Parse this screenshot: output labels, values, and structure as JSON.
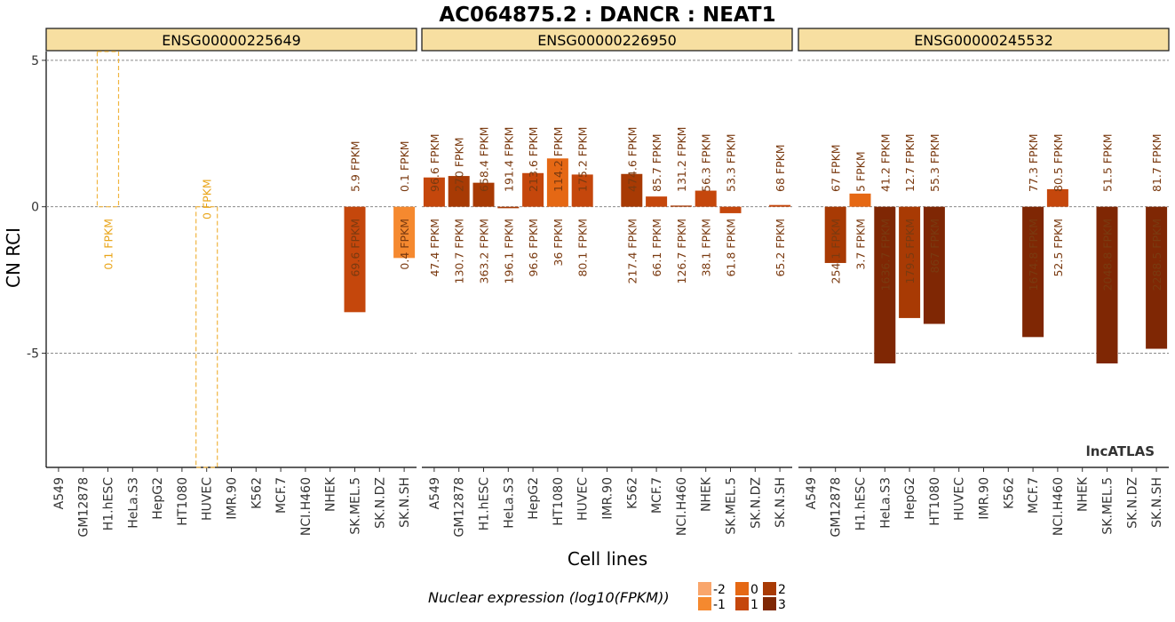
{
  "chart_data": {
    "type": "bar",
    "title": "AC064875.2 : DANCR : NEAT1",
    "xlabel": "Cell lines",
    "ylabel": "CN RCI",
    "ylim": [
      -8.9,
      5.3
    ],
    "yticks": [
      5,
      0,
      -5
    ],
    "grid": "horizontal dashed at ticks",
    "watermark": "lncATLAS",
    "categories": [
      "A549",
      "GM12878",
      "H1.hESC",
      "HeLa.S3",
      "HepG2",
      "HT1080",
      "HUVEC",
      "IMR.90",
      "K562",
      "MCF.7",
      "NCI.H460",
      "NHEK",
      "SK.MEL.5",
      "SK.N.DZ",
      "SK.N.SH"
    ],
    "legend": {
      "title": "Nuclear expression (log10(FPKM))",
      "levels": [
        -2,
        -1,
        0,
        1,
        2,
        3
      ],
      "colors": [
        "#F9A66C",
        "#F5892F",
        "#E56814",
        "#C5470C",
        "#A83A04",
        "#7F2704"
      ]
    },
    "panels": [
      {
        "gene": "ENSG00000225649",
        "bars": [
          {
            "cell": "H1.hESC",
            "value": 5.3,
            "color": "dashed",
            "top_label": "",
            "bottom_label": "0.1 FPKM"
          },
          {
            "cell": "HUVEC",
            "value": -8.9,
            "color": "dashed",
            "top_label": "0 FPKM",
            "bottom_label": ""
          },
          {
            "cell": "SK.MEL.5",
            "value": -3.6,
            "color": "#C5470C",
            "top_label": "5.9 FPKM",
            "bottom_label": "69.6 FPKM"
          },
          {
            "cell": "SK.N.SH",
            "value": -1.75,
            "color": "#F5892F",
            "top_label": "0.1 FPKM",
            "bottom_label": "0.4 FPKM"
          }
        ]
      },
      {
        "gene": "ENSG00000226950",
        "bars": [
          {
            "cell": "A549",
            "value": 1.0,
            "color": "#C5470C",
            "top_label": "96.6 FPKM",
            "bottom_label": "47.4 FPKM"
          },
          {
            "cell": "GM12878",
            "value": 1.05,
            "color": "#A83A04",
            "top_label": "270 FPKM",
            "bottom_label": "130.7 FPKM"
          },
          {
            "cell": "H1.hESC",
            "value": 0.82,
            "color": "#A83A04",
            "top_label": "658.4 FPKM",
            "bottom_label": "363.2 FPKM"
          },
          {
            "cell": "HeLa.S3",
            "value": -0.05,
            "color": "#A83A04",
            "top_label": "191.4 FPKM",
            "bottom_label": "196.1 FPKM"
          },
          {
            "cell": "HepG2",
            "value": 1.15,
            "color": "#C5470C",
            "top_label": "213.6 FPKM",
            "bottom_label": "96.6 FPKM"
          },
          {
            "cell": "HT1080",
            "value": 1.65,
            "color": "#E56814",
            "top_label": "114.2 FPKM",
            "bottom_label": "36 FPKM"
          },
          {
            "cell": "HUVEC",
            "value": 1.1,
            "color": "#C5470C",
            "top_label": "175.2 FPKM",
            "bottom_label": "80.1 FPKM"
          },
          {
            "cell": "K562",
            "value": 1.12,
            "color": "#A83A04",
            "top_label": "474.6 FPKM",
            "bottom_label": "217.4 FPKM"
          },
          {
            "cell": "MCF.7",
            "value": 0.35,
            "color": "#C5470C",
            "top_label": "85.7 FPKM",
            "bottom_label": "66.1 FPKM"
          },
          {
            "cell": "NCI.H460",
            "value": 0.04,
            "color": "#A83A04",
            "top_label": "131.2 FPKM",
            "bottom_label": "126.7 FPKM"
          },
          {
            "cell": "NHEK",
            "value": 0.55,
            "color": "#C5470C",
            "top_label": "56.3 FPKM",
            "bottom_label": "38.1 FPKM"
          },
          {
            "cell": "SK.MEL.5",
            "value": -0.22,
            "color": "#C5470C",
            "top_label": "53.3 FPKM",
            "bottom_label": "61.8 FPKM"
          },
          {
            "cell": "SK.N.SH",
            "value": 0.06,
            "color": "#C5470C",
            "top_label": "68 FPKM",
            "bottom_label": "65.2 FPKM"
          }
        ]
      },
      {
        "gene": "ENSG00000245532",
        "bars": [
          {
            "cell": "GM12878",
            "value": -1.92,
            "color": "#A83A04",
            "top_label": "67 FPKM",
            "bottom_label": "254.1 FPKM"
          },
          {
            "cell": "H1.hESC",
            "value": 0.45,
            "color": "#E56814",
            "top_label": "5 FPKM",
            "bottom_label": "3.7 FPKM"
          },
          {
            "cell": "HeLa.S3",
            "value": -5.35,
            "color": "#7F2704",
            "top_label": "41.2 FPKM",
            "bottom_label": "1636.7 FPKM"
          },
          {
            "cell": "HepG2",
            "value": -3.8,
            "color": "#A83A04",
            "top_label": "12.7 FPKM",
            "bottom_label": "179.5 FPKM"
          },
          {
            "cell": "HT1080",
            "value": -4.0,
            "color": "#7F2704",
            "top_label": "55.3 FPKM",
            "bottom_label": "867 FPKM"
          },
          {
            "cell": "MCF.7",
            "value": -4.45,
            "color": "#7F2704",
            "top_label": "77.3 FPKM",
            "bottom_label": "1674.8 FPKM"
          },
          {
            "cell": "NCI.H460",
            "value": 0.6,
            "color": "#C5470C",
            "top_label": "80.5 FPKM",
            "bottom_label": "52.5 FPKM"
          },
          {
            "cell": "SK.MEL.5",
            "value": -5.35,
            "color": "#7F2704",
            "top_label": "51.5 FPKM",
            "bottom_label": "2048.8 FPKM"
          },
          {
            "cell": "SK.N.SH",
            "value": -4.85,
            "color": "#7F2704",
            "top_label": "81.7 FPKM",
            "bottom_label": "2288.5 FPKM"
          }
        ]
      }
    ]
  }
}
